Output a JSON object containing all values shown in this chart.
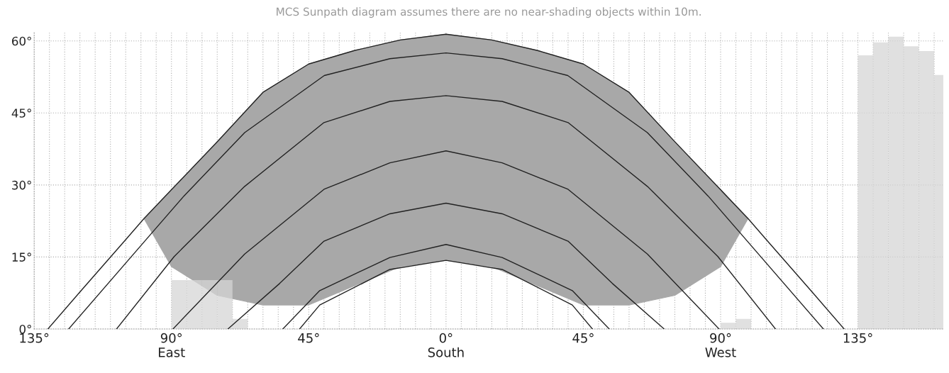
{
  "chart_data": {
    "type": "line",
    "title": "MCS Sunpath diagram assumes there are no near-shading objects within 10m.",
    "xlim": [
      -135,
      163
    ],
    "ylim": [
      0,
      62
    ],
    "xticks": [
      {
        "value": -135,
        "label": "135°"
      },
      {
        "value": -130,
        "label": null
      },
      {
        "value": -125,
        "label": null
      },
      {
        "value": -120,
        "label": null
      },
      {
        "value": -115,
        "label": null
      },
      {
        "value": -110,
        "label": null
      },
      {
        "value": -105,
        "label": null
      },
      {
        "value": -100,
        "label": null
      },
      {
        "value": -95,
        "label": null
      },
      {
        "value": -90,
        "label": "90°\nEast"
      },
      {
        "value": -85,
        "label": null
      },
      {
        "value": -80,
        "label": null
      },
      {
        "value": -75,
        "label": null
      },
      {
        "value": -70,
        "label": null
      },
      {
        "value": -65,
        "label": null
      },
      {
        "value": -60,
        "label": null
      },
      {
        "value": -55,
        "label": null
      },
      {
        "value": -50,
        "label": null
      },
      {
        "value": -45,
        "label": "45°"
      },
      {
        "value": -40,
        "label": null
      },
      {
        "value": -35,
        "label": null
      },
      {
        "value": -30,
        "label": null
      },
      {
        "value": -25,
        "label": null
      },
      {
        "value": -20,
        "label": null
      },
      {
        "value": -15,
        "label": null
      },
      {
        "value": -10,
        "label": null
      },
      {
        "value": -5,
        "label": null
      },
      {
        "value": 0,
        "label": "0°\nSouth"
      },
      {
        "value": 5,
        "label": null
      },
      {
        "value": 10,
        "label": null
      },
      {
        "value": 15,
        "label": null
      },
      {
        "value": 20,
        "label": null
      },
      {
        "value": 25,
        "label": null
      },
      {
        "value": 30,
        "label": null
      },
      {
        "value": 35,
        "label": null
      },
      {
        "value": 40,
        "label": null
      },
      {
        "value": 45,
        "label": "45°"
      },
      {
        "value": 50,
        "label": null
      },
      {
        "value": 55,
        "label": null
      },
      {
        "value": 60,
        "label": null
      },
      {
        "value": 65,
        "label": null
      },
      {
        "value": 70,
        "label": null
      },
      {
        "value": 75,
        "label": null
      },
      {
        "value": 80,
        "label": null
      },
      {
        "value": 85,
        "label": null
      },
      {
        "value": 90,
        "label": "90°\nWest"
      },
      {
        "value": 95,
        "label": null
      },
      {
        "value": 100,
        "label": null
      },
      {
        "value": 105,
        "label": null
      },
      {
        "value": 110,
        "label": null
      },
      {
        "value": 115,
        "label": null
      },
      {
        "value": 120,
        "label": null
      },
      {
        "value": 125,
        "label": null
      },
      {
        "value": 130,
        "label": null
      },
      {
        "value": 135,
        "label": "135°"
      },
      {
        "value": 140,
        "label": null
      },
      {
        "value": 145,
        "label": null
      },
      {
        "value": 150,
        "label": null
      },
      {
        "value": 155,
        "label": null
      },
      {
        "value": 160,
        "label": null
      }
    ],
    "yticks": [
      {
        "value": 0,
        "label": "0°"
      },
      {
        "value": 15,
        "label": "15°"
      },
      {
        "value": 30,
        "label": "30°"
      },
      {
        "value": 45,
        "label": "45°"
      },
      {
        "value": 60,
        "label": "60°"
      }
    ],
    "grid": true,
    "series": [
      {
        "type": "bar",
        "color": "#d6d6d6",
        "x": [
          -87.5,
          -82.5,
          -77.5,
          -72.5,
          -67.5,
          92.5,
          97.5,
          137.5,
          142.5,
          147.5,
          152.5,
          157.5,
          162.5
        ],
        "values": [
          10.2,
          10.2,
          10.2,
          10.2,
          2.1,
          1.3,
          2.1,
          57,
          59.7,
          60.9,
          58.9,
          57.9,
          52.9
        ]
      },
      {
        "color": "#222222",
        "x": [
          -130.5,
          -120,
          -105,
          -99,
          -90,
          -75,
          -60,
          -45,
          -30,
          -15,
          0,
          15,
          30,
          45,
          60,
          75,
          90,
          99,
          105,
          120,
          130.5
        ],
        "values": [
          0,
          7.7,
          18.6,
          23,
          29,
          39,
          49.3,
          55.2,
          58,
          60.2,
          61.4,
          60.2,
          58,
          55.2,
          49.3,
          39,
          29,
          23,
          18.6,
          7.7,
          0
        ],
        "upper": [
          null,
          null,
          null,
          23,
          29,
          39,
          49.3,
          55.2,
          58,
          60.2,
          61.4,
          60.2,
          58,
          55.2,
          49.3,
          39,
          29,
          23,
          null,
          null,
          null
        ],
        "lower": [
          null,
          null,
          null,
          23,
          13,
          7,
          5,
          5,
          9,
          13,
          14.3,
          13,
          9,
          5,
          5,
          7,
          13,
          23,
          null,
          null,
          null
        ]
      },
      {
        "color": "#222222",
        "x": [
          -123.7,
          -96.7,
          -85.9,
          -66,
          -39.9,
          -18.4,
          0,
          18.4,
          39.9,
          66,
          85.9,
          96.7,
          123.7
        ],
        "values": [
          0,
          19.8,
          27.7,
          40.9,
          52.8,
          56.3,
          57.5,
          56.3,
          52.8,
          40.9,
          27.7,
          19.8,
          0
        ]
      },
      {
        "color": "#222222",
        "x": [
          -108,
          -89.1,
          -66,
          -40,
          -18.4,
          0,
          18.4,
          40,
          66,
          89.1,
          108
        ],
        "values": [
          0,
          15.1,
          29.7,
          43,
          47.4,
          48.6,
          47.4,
          43,
          29.7,
          15.1,
          0
        ]
      },
      {
        "color": "#222222",
        "x": [
          -89.5,
          -66,
          -40,
          -18.4,
          0,
          18.4,
          40,
          66,
          89.5
        ],
        "values": [
          0,
          15.6,
          29.1,
          34.6,
          37.1,
          34.6,
          29.1,
          15.6,
          0
        ]
      },
      {
        "color": "#222222",
        "x": [
          -71.5,
          -54.5,
          -40,
          -18.4,
          0,
          18.4,
          40,
          54.5,
          71.5
        ],
        "values": [
          0,
          9.5,
          18.3,
          24,
          26.2,
          24,
          18.3,
          9.5,
          0
        ]
      },
      {
        "color": "#222222",
        "x": [
          -53.5,
          -41.4,
          -18.4,
          0,
          18.4,
          41.4,
          53.5
        ],
        "values": [
          0,
          8,
          14.9,
          17.6,
          14.9,
          8,
          0
        ]
      },
      {
        "color": "#222222",
        "x": [
          -48,
          -41.4,
          -18.4,
          0,
          18.4,
          41.4,
          48
        ],
        "values": [
          0,
          5,
          12.4,
          14.3,
          12.4,
          5,
          0
        ]
      }
    ]
  }
}
